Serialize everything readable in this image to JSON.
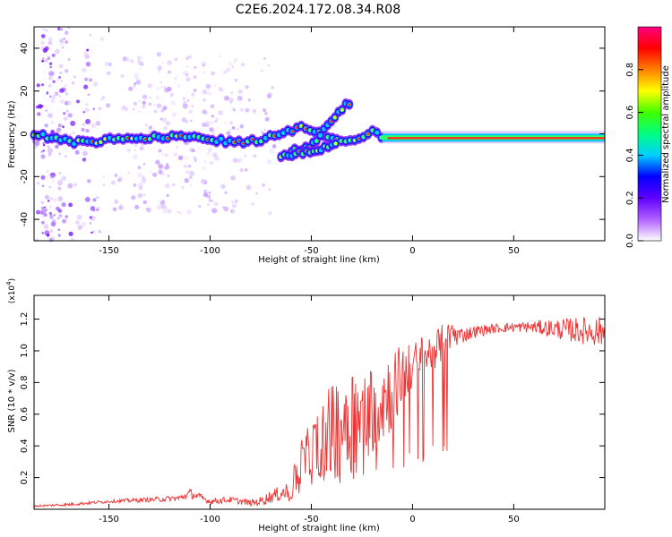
{
  "title": "C2E6.2024.172.08.34.R08",
  "colorbar": {
    "label": "Normalized spectral amplitude",
    "ticks": [
      "0.0",
      "0.2",
      "0.4",
      "0.6",
      "0.8"
    ],
    "tick_values": [
      0.0,
      0.2,
      0.4,
      0.6,
      0.8
    ],
    "range": [
      0,
      1
    ],
    "colors": [
      "#ffffff",
      "#b060ff",
      "#6000ff",
      "#0000ff",
      "#00d0ff",
      "#00ff80",
      "#40ff00",
      "#ffff00",
      "#ff8000",
      "#ff0000",
      "#ff0080"
    ]
  },
  "chart_data": [
    {
      "type": "heatmap",
      "xlabel": "Height of straight line (km)",
      "ylabel": "Frequency (Hz)",
      "xlim": [
        -187,
        95
      ],
      "ylim": [
        -50,
        50
      ],
      "xticks": [
        -150,
        -100,
        -50,
        0,
        50
      ],
      "yticks": [
        -40,
        -20,
        0,
        20,
        40
      ],
      "ridge": {
        "x": [
          -187,
          -175,
          -165,
          -150,
          -130,
          -110,
          -90,
          -75,
          -65,
          -55,
          -45,
          -38,
          -30,
          -25,
          -20,
          -15,
          -10,
          0,
          20,
          50,
          80,
          95
        ],
        "freq": [
          0,
          -3,
          -4,
          -3,
          -2,
          -1,
          -4,
          -3,
          0,
          3,
          0,
          -3,
          -4,
          -2,
          2,
          -3,
          -2,
          -2,
          -1,
          -2,
          -2,
          -2
        ]
      },
      "branches": [
        {
          "x": [
            -60,
            -50,
            -45,
            -40,
            -35,
            -30
          ],
          "freq": [
            -8,
            -6,
            0,
            7,
            12,
            15
          ]
        },
        {
          "x": [
            -65,
            -55,
            -45,
            -38
          ],
          "freq": [
            -10,
            -9,
            -7,
            -5
          ]
        }
      ]
    },
    {
      "type": "line",
      "xlabel": "Height of straight line (km)",
      "ylabel": "SNR (10 * v/v)",
      "multiplier": "(x10^4)",
      "xlim": [
        -187,
        95
      ],
      "ylim": [
        0,
        1.35
      ],
      "xticks": [
        -150,
        -100,
        -50,
        0,
        50
      ],
      "yticks": [
        0.2,
        0.4,
        0.6,
        0.8,
        1.0,
        1.2
      ],
      "ytick_labels": [
        "0.2",
        "0.4",
        "0.6",
        "0.8",
        "1.0",
        "1.2"
      ],
      "color": "#ee3333",
      "envelope": {
        "x": [
          -187,
          -170,
          -150,
          -130,
          -115,
          -110,
          -100,
          -90,
          -80,
          -75,
          -70,
          -65,
          -60,
          -55,
          -50,
          -45,
          -40,
          -35,
          -30,
          -25,
          -20,
          -15,
          -10,
          -5,
          0,
          5,
          10,
          15,
          20,
          25,
          30,
          40,
          50,
          60,
          70,
          80,
          95
        ],
        "y": [
          0.02,
          0.03,
          0.05,
          0.06,
          0.07,
          0.1,
          0.05,
          0.06,
          0.04,
          0.05,
          0.08,
          0.1,
          0.12,
          0.3,
          0.35,
          0.45,
          0.5,
          0.55,
          0.6,
          0.55,
          0.65,
          0.7,
          0.75,
          0.85,
          0.9,
          0.95,
          1.0,
          1.05,
          1.1,
          1.1,
          1.12,
          1.14,
          1.15,
          1.15,
          1.14,
          1.13,
          1.12
        ],
        "noise": [
          0.005,
          0.01,
          0.01,
          0.015,
          0.02,
          0.03,
          0.02,
          0.02,
          0.02,
          0.03,
          0.04,
          0.05,
          0.08,
          0.15,
          0.2,
          0.25,
          0.3,
          0.35,
          0.35,
          0.3,
          0.3,
          0.3,
          0.25,
          0.2,
          0.15,
          0.15,
          0.12,
          0.12,
          0.08,
          0.05,
          0.04,
          0.03,
          0.03,
          0.04,
          0.06,
          0.08,
          0.1
        ]
      }
    }
  ]
}
